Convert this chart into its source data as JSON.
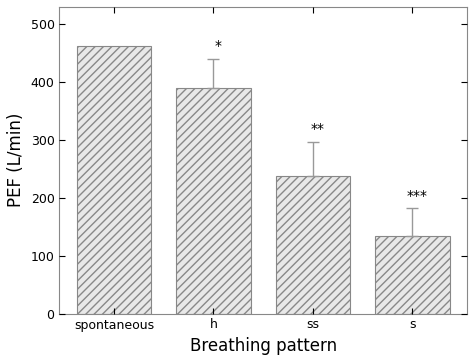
{
  "categories": [
    "spontaneous",
    "h",
    "ss",
    "s"
  ],
  "values": [
    462,
    390,
    237,
    135
  ],
  "errors_up": [
    0,
    50,
    60,
    47
  ],
  "significance": [
    "",
    "*",
    "**",
    "***"
  ],
  "ylabel": "PEF (L/min)",
  "xlabel": "Breathing pattern",
  "ylim": [
    0,
    530
  ],
  "yticks": [
    0,
    100,
    200,
    300,
    400,
    500
  ],
  "bar_color": "#e8e8e8",
  "hatch": "////",
  "bar_width": 0.75,
  "background_color": "#ffffff",
  "edge_color": "#888888",
  "error_color": "#999999",
  "sig_fontsize": 10,
  "axis_label_fontsize": 12,
  "tick_fontsize": 9
}
